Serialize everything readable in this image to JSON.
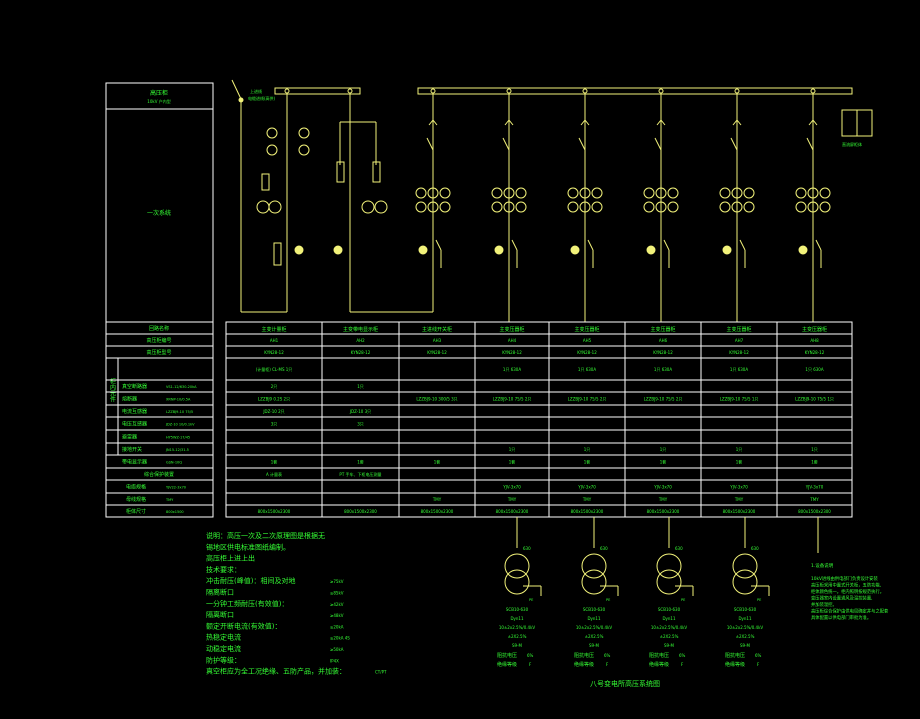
{
  "colors": {
    "background": "#000000",
    "text": "#35ff35",
    "circuit": "#f2f27a",
    "table_lines": "#ffffff"
  },
  "title_box": {
    "title": "高压柜",
    "subtitle": "10kV 户内型"
  },
  "diagram_label": "一次系统",
  "incoming_note": {
    "line1": "上进线",
    "line2": "电缆进线(高供)"
  },
  "spare_label": "直流屏柜体",
  "left_table": {
    "group_label": "柜内元件",
    "rows": [
      {
        "label": "回路名称",
        "spec": ""
      },
      {
        "label": "高压柜编号",
        "spec": ""
      },
      {
        "label": "高压柜型号",
        "spec": ""
      },
      {
        "label": "真空断路器",
        "spec": "VS1-12/630-20kA"
      },
      {
        "label": "熔断器",
        "spec": "XRNP-10/0.5A"
      },
      {
        "label": "电流互感器",
        "spec": "LZZBJ9-10 75/5"
      },
      {
        "label": "电压互感器",
        "spec": "JDZ-10 10/0.1kV"
      },
      {
        "label": "避雷器",
        "spec": "HY5WZ-17/45"
      },
      {
        "label": "接地开关",
        "spec": "JN15-12/31.5"
      },
      {
        "label": "带电显示器",
        "spec": "GSN-10Q"
      },
      {
        "label": "综合保护装置",
        "spec": ""
      },
      {
        "label": "电缆规格",
        "spec": "YJV22-3x70"
      },
      {
        "label": "母线规格",
        "spec": "TMY"
      },
      {
        "label": "柜体尺寸",
        "spec": "800x1500"
      }
    ]
  },
  "columns": [
    {
      "name": "主变计量柜",
      "cells": [
        "AH1",
        "KYN28-12",
        "(计量柜)  CL-MS 1只",
        "2只",
        "LZZBJ9 0.2S  2只",
        "JDZ-10  2只",
        "3只",
        "",
        "",
        "1套",
        "A 计量表",
        "",
        "",
        "800x1500x2300"
      ]
    },
    {
      "name": "主变带电显示柜",
      "cells": [
        "AH2",
        "KYN28-12",
        "",
        "1只",
        "",
        "JDZ-10  3只",
        "3只",
        "",
        "",
        "1套",
        "PT 手车、下柜电压测量",
        "",
        "",
        "800x1500x2300"
      ]
    },
    {
      "name": "主进线开关柜",
      "cells": [
        "AH3",
        "KYN28-12",
        "",
        "",
        "LZZBJ9-10 300/5  3只",
        "",
        "",
        "",
        "",
        "1套",
        "",
        "",
        "TMY",
        "800x1500x2300"
      ]
    },
    {
      "name": "主变压器柜",
      "cells": [
        "AH4",
        "KYN28-12",
        "1只  630A",
        "",
        "LZZBJ9-10 75/5  2只",
        "",
        "",
        "",
        "1只",
        "1套",
        "",
        "YJV-3x70",
        "TMY",
        "800x1500x2300"
      ]
    },
    {
      "name": "主变压器柜",
      "cells": [
        "AH5",
        "KYN28-12",
        "1只  630A",
        "",
        "LZZBJ9-10 75/5  2只",
        "",
        "",
        "",
        "1只",
        "1套",
        "",
        "YJV-3x70",
        "TMY",
        "800x1500x2300"
      ]
    },
    {
      "name": "主变压器柜",
      "cells": [
        "AH6",
        "KYN28-12",
        "1只  630A",
        "",
        "LZZBJ9-10 75/5  2只",
        "",
        "",
        "",
        "1只",
        "1套",
        "",
        "YJV-3x70",
        "TMY",
        "800x1500x2300"
      ]
    },
    {
      "name": "主变压器柜",
      "cells": [
        "AH7",
        "KYN28-12",
        "1只  630A",
        "",
        "LZZBJ9-10 75/5  1只",
        "",
        "",
        "",
        "1只",
        "1套",
        "",
        "YJV-3x70",
        "TMY",
        "800x1500x2300"
      ]
    },
    {
      "name": "主变压器柜",
      "cells": [
        "AH8",
        "KYN28-12",
        "1只  630A",
        "",
        "LZZBJ9-10 75/5  1只",
        "",
        "",
        "",
        "1只",
        "1套",
        "",
        "YJV-3x70",
        "TMY",
        "800x1500x2300"
      ]
    }
  ],
  "notes": [
    {
      "text": "说明：高压一次及二次原理图是根据无",
      "value": ""
    },
    {
      "text": "      锡地区供电标准图纸编制。",
      "value": ""
    },
    {
      "text": "高压柜上进上出",
      "value": ""
    },
    {
      "text": "技术要求：",
      "value": ""
    },
    {
      "text": "冲击耐压(峰值)：相间及对地",
      "value": "≥75kV"
    },
    {
      "text": "隔离断口",
      "value": "≥85kV"
    },
    {
      "text": "一分钟工频耐压(有效值)：",
      "value": "≥42kV"
    },
    {
      "text": "隔离断口",
      "value": "≥48kV"
    },
    {
      "text": "额定开断电流(有效值)：",
      "value": "≥20kA"
    },
    {
      "text": "热稳定电流",
      "value": "≥20kA 4S"
    },
    {
      "text": "动稳定电流",
      "value": "≥50kA"
    },
    {
      "text": "防护等级：",
      "value": "IP4X"
    },
    {
      "text": "真空柜应为全工况绝缘、五防产品，并加装：",
      "value": "CT/PT"
    }
  ],
  "transformers": [
    {
      "id": "630",
      "lines": [
        "SCB10-630",
        "Dyn11",
        "10±2x2.5%/0.4kV",
        "±2X2.5%",
        "S9-M"
      ],
      "impedance_label": "阻抗电压",
      "impedance": "6%",
      "insulation_label": "绝缘等级",
      "insulation": "F",
      "pe": "PE"
    },
    {
      "id": "630",
      "lines": [
        "SCB10-630",
        "Dyn11",
        "10±2x2.5%/0.4kV",
        "±2X2.5%",
        "S9-M"
      ],
      "impedance_label": "阻抗电压",
      "impedance": "6%",
      "insulation_label": "绝缘等级",
      "insulation": "F",
      "pe": "PE"
    },
    {
      "id": "630",
      "lines": [
        "SCB10-630",
        "Dyn11",
        "10±2x2.5%/0.4kV",
        "±2X2.5%",
        "S9-M"
      ],
      "impedance_label": "阻抗电压",
      "impedance": "6%",
      "insulation_label": "绝缘等级",
      "insulation": "F",
      "pe": "PE"
    },
    {
      "id": "630",
      "lines": [
        "SCB10-630",
        "Dyn11",
        "10±2x2.5%/0.4kV",
        "±2X2.5%",
        "S9-M"
      ],
      "impedance_label": "阻抗电压",
      "impedance": "6%",
      "insulation_label": "绝缘等级",
      "insulation": "F",
      "pe": "PE"
    }
  ],
  "right_note": {
    "title": "1.设备说明",
    "lines": [
      "10kV进线由供电部门负责设计安装",
      "高压柜采用中置式开关柜，五防功能,",
      "柜体颜色统一。柜内照明按规范执行。",
      "变压器室内设置通风及温控装置,",
      "并加装温控。",
      "高压柜综合保护由供电局确定并与之配套",
      "具体配置以供电部门审批为准。"
    ]
  },
  "drawing_title": "八号变电所高压系统图"
}
